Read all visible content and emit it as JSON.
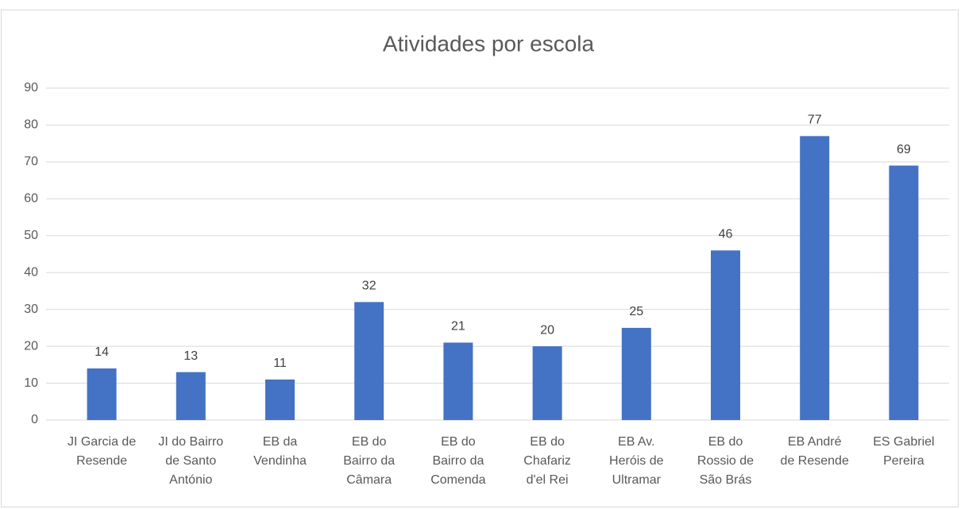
{
  "chart_data": {
    "type": "bar",
    "title": "Atividades por escola",
    "categories": [
      "JI Garcia de Resende",
      "JI do Bairro de Santo António",
      "EB da Vendinha",
      "EB do Bairro da Câmara",
      "EB do Bairro da Comenda",
      "EB do Chafariz d'el Rei",
      "EB Av. Heróis de Ultramar",
      "EB do Rossio de São Brás",
      "EB André de Resende",
      "ES Gabriel Pereira"
    ],
    "values": [
      14,
      13,
      11,
      32,
      21,
      20,
      25,
      46,
      77,
      69
    ],
    "color": "#4472c4",
    "ylim": [
      0,
      90
    ],
    "yticks": [
      0,
      10,
      20,
      30,
      40,
      50,
      60,
      70,
      80,
      90
    ],
    "grid": true
  }
}
